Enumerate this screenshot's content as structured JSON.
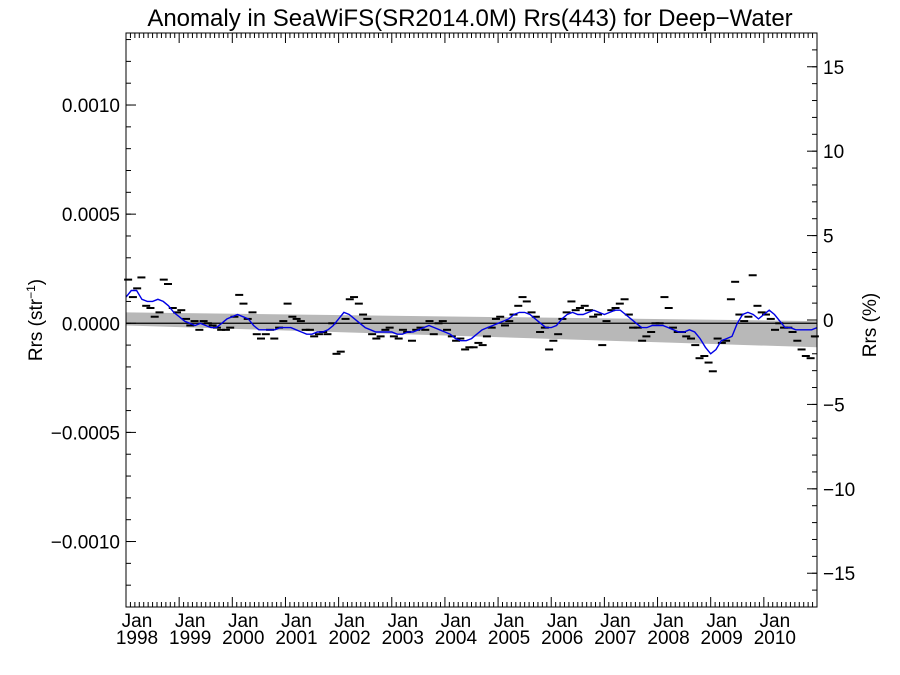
{
  "chart_data": {
    "type": "line",
    "title": "Anomaly in SeaWiFS(SR2014.0M) Rrs(443) for Deep−Water",
    "ylabel": {
      "base": "Rrs (str",
      "sup": "−1",
      "close": ")"
    },
    "ylabel_right": "Rrs (%)",
    "ylim": [
      -0.0013,
      0.00133
    ],
    "ylim_right": [
      -17,
      17
    ],
    "xlim": [
      1998.0,
      2011.0
    ],
    "y_ticks": [
      {
        "value": 0.001,
        "label": "0.0010"
      },
      {
        "value": 0.0005,
        "label": "0.0005"
      },
      {
        "value": 0.0,
        "label": "0.0000"
      },
      {
        "value": -0.0005,
        "label": "−0.0005"
      },
      {
        "value": -0.001,
        "label": "−0.0010"
      }
    ],
    "y_ticks_right": [
      {
        "value": 15,
        "label": "15"
      },
      {
        "value": 10,
        "label": "10"
      },
      {
        "value": 5,
        "label": "5"
      },
      {
        "value": 0,
        "label": "0"
      },
      {
        "value": -5,
        "label": "−5"
      },
      {
        "value": -10,
        "label": "−10"
      },
      {
        "value": -15,
        "label": "−15"
      }
    ],
    "x_ticks": [
      {
        "value": 1998,
        "month": "Jan",
        "year": "1998"
      },
      {
        "value": 1999,
        "month": "Jan",
        "year": "1999"
      },
      {
        "value": 2000,
        "month": "Jan",
        "year": "2000"
      },
      {
        "value": 2001,
        "month": "Jan",
        "year": "2001"
      },
      {
        "value": 2002,
        "month": "Jan",
        "year": "2002"
      },
      {
        "value": 2003,
        "month": "Jan",
        "year": "2003"
      },
      {
        "value": 2004,
        "month": "Jan",
        "year": "2004"
      },
      {
        "value": 2005,
        "month": "Jan",
        "year": "2005"
      },
      {
        "value": 2006,
        "month": "Jan",
        "year": "2006"
      },
      {
        "value": 2007,
        "month": "Jan",
        "year": "2007"
      },
      {
        "value": 2008,
        "month": "Jan",
        "year": "2008"
      },
      {
        "value": 2009,
        "month": "Jan",
        "year": "2009"
      },
      {
        "value": 2010,
        "month": "Jan",
        "year": "2010"
      }
    ],
    "colors": {
      "smooth": "#0000e6",
      "band": "#b8b8b8",
      "monthly": "#000000",
      "zero_line": "#000000"
    },
    "grid": false,
    "legend": "none",
    "trend_band": {
      "x": [
        1998.0,
        2011.0
      ],
      "upper": [
        5e-05,
        1e-05
      ],
      "lower": [
        -1e-05,
        -0.00011
      ]
    },
    "monthly_anomaly": {
      "x": [
        1998.04,
        1998.13,
        1998.21,
        1998.29,
        1998.38,
        1998.46,
        1998.54,
        1998.63,
        1998.71,
        1998.79,
        1998.88,
        1998.96,
        1999.04,
        1999.13,
        1999.21,
        1999.29,
        1999.38,
        1999.46,
        1999.54,
        1999.63,
        1999.71,
        1999.79,
        1999.88,
        1999.96,
        2000.04,
        2000.13,
        2000.21,
        2000.29,
        2000.38,
        2000.46,
        2000.54,
        2000.63,
        2000.71,
        2000.79,
        2000.88,
        2000.96,
        2001.04,
        2001.13,
        2001.21,
        2001.29,
        2001.38,
        2001.46,
        2001.54,
        2001.63,
        2001.71,
        2001.79,
        2001.88,
        2001.96,
        2002.04,
        2002.13,
        2002.21,
        2002.29,
        2002.38,
        2002.46,
        2002.54,
        2002.63,
        2002.71,
        2002.79,
        2002.88,
        2002.96,
        2003.04,
        2003.13,
        2003.21,
        2003.29,
        2003.38,
        2003.46,
        2003.54,
        2003.63,
        2003.71,
        2003.79,
        2003.88,
        2003.96,
        2004.04,
        2004.13,
        2004.21,
        2004.29,
        2004.38,
        2004.46,
        2004.54,
        2004.63,
        2004.71,
        2004.79,
        2004.88,
        2004.96,
        2005.04,
        2005.13,
        2005.21,
        2005.29,
        2005.38,
        2005.46,
        2005.54,
        2005.63,
        2005.71,
        2005.79,
        2005.88,
        2005.96,
        2006.04,
        2006.13,
        2006.21,
        2006.29,
        2006.38,
        2006.46,
        2006.54,
        2006.63,
        2006.71,
        2006.79,
        2006.88,
        2006.96,
        2007.04,
        2007.13,
        2007.21,
        2007.29,
        2007.38,
        2007.46,
        2007.54,
        2007.63,
        2007.71,
        2007.79,
        2007.88,
        2007.96,
        2008.04,
        2008.13,
        2008.21,
        2008.29,
        2008.38,
        2008.46,
        2008.54,
        2008.63,
        2008.71,
        2008.79,
        2008.88,
        2008.96,
        2009.04,
        2009.13,
        2009.21,
        2009.29,
        2009.38,
        2009.46,
        2009.54,
        2009.63,
        2009.71,
        2009.79,
        2009.88,
        2009.96,
        2010.04,
        2010.13,
        2010.21,
        2010.29,
        2010.38,
        2010.46,
        2010.54,
        2010.63,
        2010.71,
        2010.79,
        2010.88,
        2010.96
      ],
      "y": [
        0.0002,
        0.00012,
        0.00016,
        0.00021,
        8e-05,
        7e-05,
        3e-05,
        5e-05,
        0.0002,
        0.00018,
        7e-05,
        5e-05,
        6e-05,
        2e-05,
        -1e-05,
        1e-05,
        -3e-05,
        1e-05,
        0.0,
        -1e-05,
        -2e-05,
        -3e-05,
        -3e-05,
        -2e-05,
        3e-05,
        0.00013,
        9e-05,
        2e-05,
        5e-05,
        -5e-05,
        -7e-05,
        -5e-05,
        -3e-05,
        -7e-05,
        -2e-05,
        1e-05,
        9e-05,
        3e-05,
        2e-05,
        1e-05,
        -3e-05,
        -3e-05,
        -6e-05,
        -5e-05,
        -4e-05,
        -5e-05,
        0.0,
        -0.00014,
        -0.00013,
        2e-05,
        0.00011,
        0.00012,
        9e-05,
        4e-05,
        2e-05,
        -5e-05,
        -7e-05,
        -6e-05,
        -3e-05,
        -2e-05,
        -6e-05,
        -7e-05,
        -3e-05,
        -4e-05,
        -8e-05,
        -3e-05,
        -2e-05,
        -3e-05,
        1e-05,
        -5e-05,
        0.0,
        1e-05,
        -3e-05,
        -6e-05,
        -8e-05,
        -7e-05,
        -0.00012,
        -0.00011,
        -0.00011,
        -9e-05,
        -0.0001,
        -6e-05,
        -2e-05,
        2e-05,
        3e-05,
        -1e-05,
        1e-05,
        4e-05,
        8e-05,
        0.00012,
        0.0001,
        5e-05,
        3e-05,
        -4e-05,
        -2e-05,
        -0.00012,
        -8e-05,
        -5e-05,
        2e-05,
        5e-05,
        0.0001,
        6e-05,
        7e-05,
        8e-05,
        6e-05,
        3e-05,
        4e-05,
        -0.0001,
        1e-05,
        6e-05,
        7e-05,
        9e-05,
        0.00011,
        4e-05,
        -2e-05,
        -2e-05,
        -8e-05,
        -6e-05,
        -4e-05,
        0.0,
        0.0,
        0.00012,
        7e-05,
        -2e-05,
        -4e-05,
        -4e-05,
        -6e-05,
        -7e-05,
        -0.0001,
        -0.00016,
        -0.00015,
        -0.00018,
        -0.00022,
        -7e-05,
        -9e-05,
        -8e-05,
        0.00011,
        0.00019,
        4e-05,
        1e-05,
        3e-05,
        0.00022,
        8e-05,
        5e-05,
        4e-05,
        2e-05,
        -3e-05,
        0.0,
        -2e-05,
        -2e-05,
        -4e-05,
        -8e-05,
        -0.00012,
        -0.00015,
        -0.00016,
        -6e-05
      ]
    },
    "smoothed": {
      "x": [
        1998.0,
        1998.1,
        1998.2,
        1998.3,
        1998.4,
        1998.5,
        1998.6,
        1998.7,
        1998.8,
        1998.9,
        1999.0,
        1999.1,
        1999.2,
        1999.3,
        1999.4,
        1999.5,
        1999.6,
        1999.7,
        1999.8,
        1999.9,
        2000.0,
        2000.1,
        2000.2,
        2000.3,
        2000.4,
        2000.5,
        2000.6,
        2000.7,
        2000.8,
        2000.9,
        2001.0,
        2001.1,
        2001.2,
        2001.3,
        2001.4,
        2001.5,
        2001.6,
        2001.7,
        2001.8,
        2001.9,
        2002.0,
        2002.1,
        2002.2,
        2002.3,
        2002.4,
        2002.5,
        2002.6,
        2002.7,
        2002.8,
        2002.9,
        2003.0,
        2003.1,
        2003.2,
        2003.3,
        2003.4,
        2003.5,
        2003.6,
        2003.7,
        2003.8,
        2003.9,
        2004.0,
        2004.1,
        2004.2,
        2004.3,
        2004.4,
        2004.5,
        2004.6,
        2004.7,
        2004.8,
        2004.9,
        2005.0,
        2005.1,
        2005.2,
        2005.3,
        2005.4,
        2005.5,
        2005.6,
        2005.7,
        2005.8,
        2005.9,
        2006.0,
        2006.1,
        2006.2,
        2006.3,
        2006.4,
        2006.5,
        2006.6,
        2006.7,
        2006.8,
        2006.9,
        2007.0,
        2007.1,
        2007.2,
        2007.3,
        2007.4,
        2007.5,
        2007.6,
        2007.7,
        2007.8,
        2007.9,
        2008.0,
        2008.1,
        2008.2,
        2008.3,
        2008.4,
        2008.5,
        2008.6,
        2008.7,
        2008.8,
        2008.9,
        2009.0,
        2009.1,
        2009.2,
        2009.3,
        2009.4,
        2009.5,
        2009.6,
        2009.7,
        2009.8,
        2009.9,
        2010.0,
        2010.1,
        2010.2,
        2010.3,
        2010.4,
        2010.5,
        2010.6,
        2010.7,
        2010.8,
        2010.9,
        2011.0
      ],
      "y": [
        0.00012,
        0.00015,
        0.00015,
        0.00011,
        0.0001,
        0.0001,
        0.00011,
        0.0001,
        8e-05,
        5e-05,
        3e-05,
        1e-05,
        0.0,
        -1e-05,
        0.0,
        -1e-05,
        -2e-05,
        -2e-05,
        0.0,
        2e-05,
        3e-05,
        4e-05,
        3e-05,
        2e-05,
        -1e-05,
        -3e-05,
        -3e-05,
        -3e-05,
        -3e-05,
        -2e-05,
        -2e-05,
        -2e-05,
        -3e-05,
        -4e-05,
        -5e-05,
        -5e-05,
        -4e-05,
        -4e-05,
        -3e-05,
        -1e-05,
        2e-05,
        5e-05,
        4e-05,
        2e-05,
        0.0,
        -2e-05,
        -3e-05,
        -4e-05,
        -4e-05,
        -4e-05,
        -4e-05,
        -5e-05,
        -5e-05,
        -4e-05,
        -4e-05,
        -3e-05,
        -2e-05,
        -1e-05,
        -2e-05,
        -3e-05,
        -4e-05,
        -5e-05,
        -7e-05,
        -8e-05,
        -8e-05,
        -7e-05,
        -5e-05,
        -3e-05,
        -2e-05,
        -1e-05,
        0.0,
        1e-05,
        2e-05,
        4e-05,
        5e-05,
        5e-05,
        4e-05,
        2e-05,
        0.0,
        -2e-05,
        -2e-05,
        -1e-05,
        2e-05,
        4e-05,
        5e-05,
        4e-05,
        4e-05,
        5e-05,
        6e-05,
        5e-05,
        4e-05,
        5e-05,
        6e-05,
        6e-05,
        4e-05,
        2e-05,
        0.0,
        -2e-05,
        -2e-05,
        -1e-05,
        -1e-05,
        -1e-05,
        -2e-05,
        -3e-05,
        -4e-05,
        -4e-05,
        -3e-05,
        -4e-05,
        -7e-05,
        -0.00011,
        -0.00014,
        -0.00012,
        -8e-05,
        -7e-05,
        -6e-05,
        0.0,
        4e-05,
        5e-05,
        4e-05,
        2e-05,
        4e-05,
        6e-05,
        4e-05,
        1e-05,
        -2e-05,
        -2e-05,
        -3e-05,
        -3e-05,
        -3e-05,
        -3e-05,
        -2e-05
      ]
    }
  }
}
